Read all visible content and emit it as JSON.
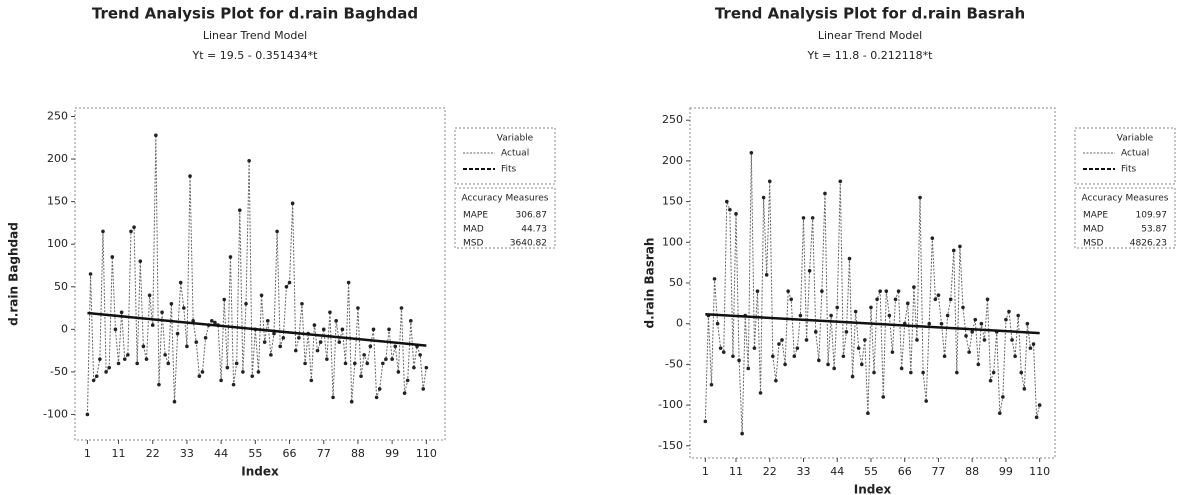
{
  "chart_data": [
    {
      "type": "line",
      "title": "Trend Analysis Plot for d.rain Baghdad",
      "subtitle": "Linear Trend Model",
      "equation": "Yt = 19.5 - 0.351434*t",
      "x_label": "Index",
      "y_label": "d.rain Baghdad",
      "x": [
        1,
        2,
        3,
        4,
        5,
        6,
        7,
        8,
        9,
        10,
        11,
        12,
        13,
        14,
        15,
        16,
        17,
        18,
        19,
        20,
        21,
        22,
        23,
        24,
        25,
        26,
        27,
        28,
        29,
        30,
        31,
        32,
        33,
        34,
        35,
        36,
        37,
        38,
        39,
        40,
        41,
        42,
        43,
        44,
        45,
        46,
        47,
        48,
        49,
        50,
        51,
        52,
        53,
        54,
        55,
        56,
        57,
        58,
        59,
        60,
        61,
        62,
        63,
        64,
        65,
        66,
        67,
        68,
        69,
        70,
        71,
        72,
        73,
        74,
        75,
        76,
        77,
        78,
        79,
        80,
        81,
        82,
        83,
        84,
        85,
        86,
        87,
        88,
        89,
        90,
        91,
        92,
        93,
        94,
        95,
        96,
        97,
        98,
        99,
        100,
        101,
        102,
        103,
        104,
        105,
        106,
        107,
        108,
        109,
        110
      ],
      "series": [
        {
          "name": "Actual",
          "color": "#666666",
          "values": [
            -100,
            65,
            -60,
            -55,
            -35,
            115,
            -50,
            -45,
            85,
            0,
            -40,
            20,
            -35,
            -30,
            115,
            120,
            -40,
            80,
            -20,
            -35,
            40,
            5,
            228,
            -65,
            20,
            -30,
            -40,
            30,
            -85,
            -5,
            55,
            25,
            -20,
            180,
            10,
            -15,
            -55,
            -50,
            -10,
            5,
            10,
            8,
            5,
            -60,
            35,
            -45,
            85,
            -65,
            -40,
            140,
            -50,
            30,
            198,
            -55,
            0,
            -50,
            40,
            -15,
            10,
            -30,
            -5,
            115,
            -20,
            -10,
            50,
            55,
            148,
            -25,
            -10,
            30,
            -40,
            -5,
            -60,
            5,
            -25,
            -15,
            0,
            -35,
            20,
            -80,
            10,
            -15,
            0,
            -40,
            55,
            -85,
            -40,
            25,
            -55,
            -30,
            -40,
            -20,
            0,
            -80,
            -70,
            -40,
            -35,
            0,
            -35,
            -20,
            -50,
            25,
            -75,
            -60,
            10,
            -45,
            -20,
            -30,
            -70,
            -45
          ]
        },
        {
          "name": "Fits",
          "color": "#111111",
          "x": [
            1,
            110
          ],
          "values": [
            19.15,
            -19.16
          ]
        }
      ],
      "xlim": [
        -3,
        116
      ],
      "ylim": [
        -130,
        260
      ],
      "xticks": [
        1,
        11,
        22,
        33,
        44,
        55,
        66,
        77,
        88,
        99,
        110
      ],
      "yticks": [
        -100,
        -50,
        0,
        50,
        100,
        150,
        200,
        250
      ],
      "legend_title": "Variable",
      "accuracy_title": "Accuracy Measures",
      "accuracy": [
        {
          "label": "MAPE",
          "value": "306.87"
        },
        {
          "label": "MAD",
          "value": "44.73"
        },
        {
          "label": "MSD",
          "value": "3640.82"
        }
      ]
    },
    {
      "type": "line",
      "title": "Trend Analysis Plot for d.rain Basrah",
      "subtitle": "Linear Trend Model",
      "equation": "Yt = 11.8 - 0.212118*t",
      "x_label": "Index",
      "y_label": "d.rain Basrah",
      "x": [
        1,
        2,
        3,
        4,
        5,
        6,
        7,
        8,
        9,
        10,
        11,
        12,
        13,
        14,
        15,
        16,
        17,
        18,
        19,
        20,
        21,
        22,
        23,
        24,
        25,
        26,
        27,
        28,
        29,
        30,
        31,
        32,
        33,
        34,
        35,
        36,
        37,
        38,
        39,
        40,
        41,
        42,
        43,
        44,
        45,
        46,
        47,
        48,
        49,
        50,
        51,
        52,
        53,
        54,
        55,
        56,
        57,
        58,
        59,
        60,
        61,
        62,
        63,
        64,
        65,
        66,
        67,
        68,
        69,
        70,
        71,
        72,
        73,
        74,
        75,
        76,
        77,
        78,
        79,
        80,
        81,
        82,
        83,
        84,
        85,
        86,
        87,
        88,
        89,
        90,
        91,
        92,
        93,
        94,
        95,
        96,
        97,
        98,
        99,
        100,
        101,
        102,
        103,
        104,
        105,
        106,
        107,
        108,
        109,
        110
      ],
      "series": [
        {
          "name": "Actual",
          "color": "#666666",
          "values": [
            -120,
            10,
            -75,
            55,
            0,
            -30,
            -35,
            150,
            140,
            -40,
            135,
            -45,
            -135,
            10,
            -55,
            210,
            -30,
            40,
            -85,
            155,
            60,
            175,
            -40,
            -70,
            -25,
            -20,
            -50,
            40,
            30,
            -40,
            -30,
            10,
            130,
            -20,
            65,
            130,
            -10,
            -45,
            40,
            160,
            -50,
            10,
            -55,
            20,
            175,
            -40,
            -10,
            80,
            -65,
            15,
            -30,
            -50,
            -20,
            -110,
            20,
            -60,
            30,
            40,
            -90,
            40,
            10,
            -35,
            30,
            40,
            -55,
            0,
            25,
            -60,
            45,
            -20,
            155,
            -60,
            -95,
            0,
            105,
            30,
            35,
            0,
            -40,
            10,
            30,
            90,
            -60,
            95,
            20,
            -15,
            -35,
            -10,
            5,
            -50,
            0,
            -20,
            30,
            -70,
            -60,
            -10,
            -110,
            -90,
            5,
            15,
            -20,
            -40,
            10,
            -60,
            -80,
            0,
            -30,
            -25,
            -115,
            -100
          ]
        },
        {
          "name": "Fits",
          "color": "#111111",
          "x": [
            1,
            110
          ],
          "values": [
            11.59,
            -11.53
          ]
        }
      ],
      "xlim": [
        -4,
        115
      ],
      "ylim": [
        -165,
        265
      ],
      "xticks": [
        1,
        11,
        22,
        33,
        44,
        55,
        66,
        77,
        88,
        99,
        110
      ],
      "yticks": [
        -150,
        -100,
        -50,
        0,
        50,
        100,
        150,
        200,
        250
      ],
      "legend_title": "Variable",
      "accuracy_title": "Accuracy Measures",
      "accuracy": [
        {
          "label": "MAPE",
          "value": "109.97"
        },
        {
          "label": "MAD",
          "value": "53.87"
        },
        {
          "label": "MSD",
          "value": "4826.23"
        }
      ]
    }
  ]
}
